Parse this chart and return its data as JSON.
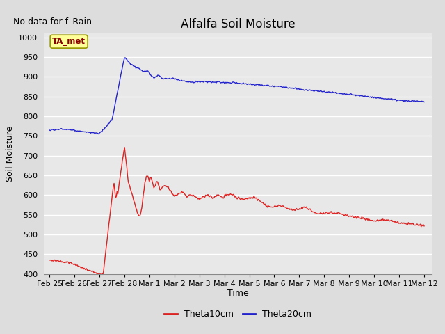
{
  "title": "Alfalfa Soil Moisture",
  "subtitle": "No data for f_Rain",
  "ylabel": "Soil Moisture",
  "xlabel": "Time",
  "ylim": [
    400,
    1010
  ],
  "yticks": [
    400,
    450,
    500,
    550,
    600,
    650,
    700,
    750,
    800,
    850,
    900,
    950,
    1000
  ],
  "xtick_labels": [
    "Feb 25",
    "Feb 26",
    "Feb 27",
    "Feb 28",
    "Mar 1",
    "Mar 2",
    "Mar 3",
    "Mar 4",
    "Mar 5",
    "Mar 6",
    "Mar 7",
    "Mar 8",
    "Mar 9",
    "Mar 10",
    "Mar 11",
    "Mar 12"
  ],
  "legend_entries": [
    "Theta10cm",
    "Theta20cm"
  ],
  "legend_colors": [
    "#dd2222",
    "#2222cc"
  ],
  "line_colors": [
    "#dd2222",
    "#2222cc"
  ],
  "background_color": "#dddddd",
  "plot_bg_color": "#e8e8e8",
  "grid_color": "#ffffff",
  "ta_met_label": "TA_met",
  "ta_met_bg": "#ffff99",
  "ta_met_border": "#999900",
  "title_fontsize": 12,
  "subtitle_fontsize": 9,
  "tick_fontsize": 8,
  "ylabel_fontsize": 9,
  "xlabel_fontsize": 9,
  "legend_fontsize": 9
}
